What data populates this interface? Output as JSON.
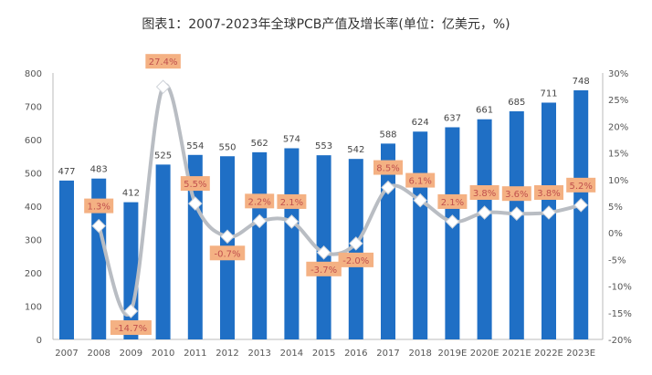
{
  "chart_data": {
    "type": "bar+line",
    "title": "图表1：2007-2023年全球PCB产值及增长率(单位：亿美元，%)",
    "categories": [
      "2007",
      "2008",
      "2009",
      "2010",
      "2011",
      "2012",
      "2013",
      "2014",
      "2015",
      "2016",
      "2017",
      "2018",
      "2019E",
      "2020E",
      "2021E",
      "2022E",
      "2023E"
    ],
    "series": [
      {
        "type": "bar",
        "axis": "left",
        "color": "#1f6fc5",
        "values": [
          477,
          483,
          412,
          525,
          554,
          550,
          562,
          574,
          553,
          542,
          588,
          624,
          637,
          661,
          685,
          711,
          748
        ]
      },
      {
        "type": "line",
        "axis": "right",
        "color": "#b9bdc3",
        "values": [
          null,
          1.3,
          -14.7,
          27.4,
          5.5,
          -0.7,
          2.2,
          2.1,
          -3.7,
          -2.0,
          8.5,
          6.1,
          2.1,
          3.8,
          3.6,
          3.8,
          5.2
        ],
        "labels": [
          "",
          "1.3%",
          "-14.7%",
          "27.4%",
          "5.5%",
          "-0.7%",
          "2.2%",
          "2.1%",
          "-3.7%",
          "-2.0%",
          "8.5%",
          "6.1%",
          "2.1%",
          "3.8%",
          "3.6%",
          "3.8%",
          "5.2%"
        ]
      }
    ],
    "left_axis": {
      "ylim": [
        0,
        800
      ],
      "ticks": [
        "0",
        "100",
        "200",
        "300",
        "400",
        "500",
        "600",
        "700",
        "800"
      ]
    },
    "right_axis": {
      "ylim": [
        -20,
        30
      ],
      "ticks": [
        "-20%",
        "-15%",
        "-10%",
        "-5%",
        "0%",
        "5%",
        "10%",
        "15%",
        "20%",
        "25%",
        "30%"
      ]
    },
    "label_box_color": "#f4b183",
    "grid": false,
    "legend": "none"
  }
}
